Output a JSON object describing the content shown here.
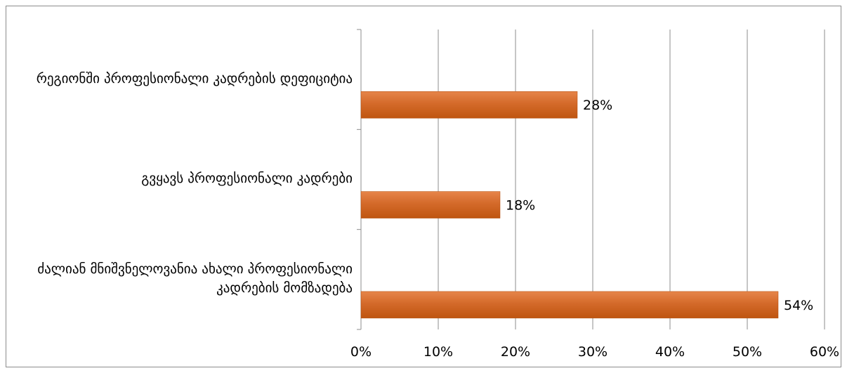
{
  "chart_data": {
    "type": "bar",
    "orientation": "horizontal",
    "categories": [
      "რეგიონში პროფესიონალი კადრების დეფიციტია",
      "გვყავს პროფესიონალი კადრები",
      "ძალიან მნიშვნელოვანია ახალი პროფესიონალი კადრების მომზადება"
    ],
    "values": [
      28,
      18,
      54
    ],
    "data_labels": [
      "28%",
      "18%",
      "54%"
    ],
    "x_ticks": [
      "0%",
      "10%",
      "20%",
      "30%",
      "40%",
      "50%",
      "60%"
    ],
    "xlim": [
      0,
      60
    ],
    "grid": true,
    "legend": "none",
    "bar_color": "#c55a11",
    "bar_highlight": "#e07a3c"
  }
}
